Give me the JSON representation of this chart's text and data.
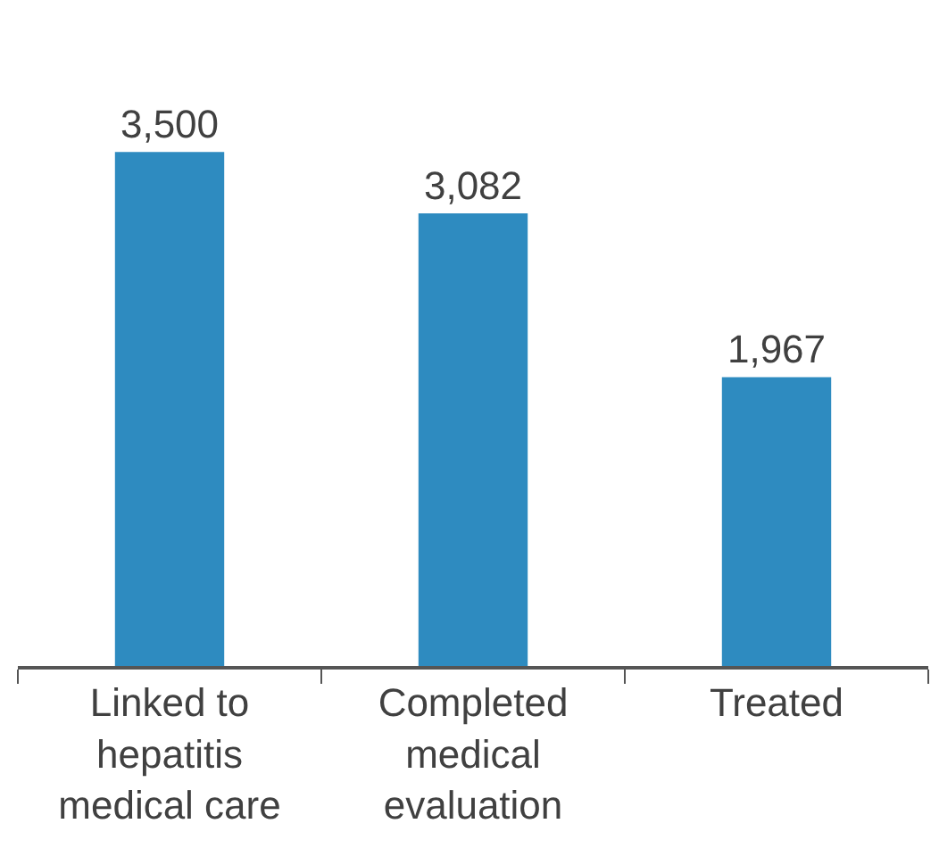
{
  "chart_data": {
    "type": "bar",
    "categories": [
      "Linked to hepatitis medical care",
      "Completed medical evaluation",
      "Treated"
    ],
    "values": [
      3500,
      3082,
      1967
    ],
    "color": "#2e8bc0",
    "value_labels": [
      "3,500",
      "3,082",
      "1,967"
    ]
  }
}
